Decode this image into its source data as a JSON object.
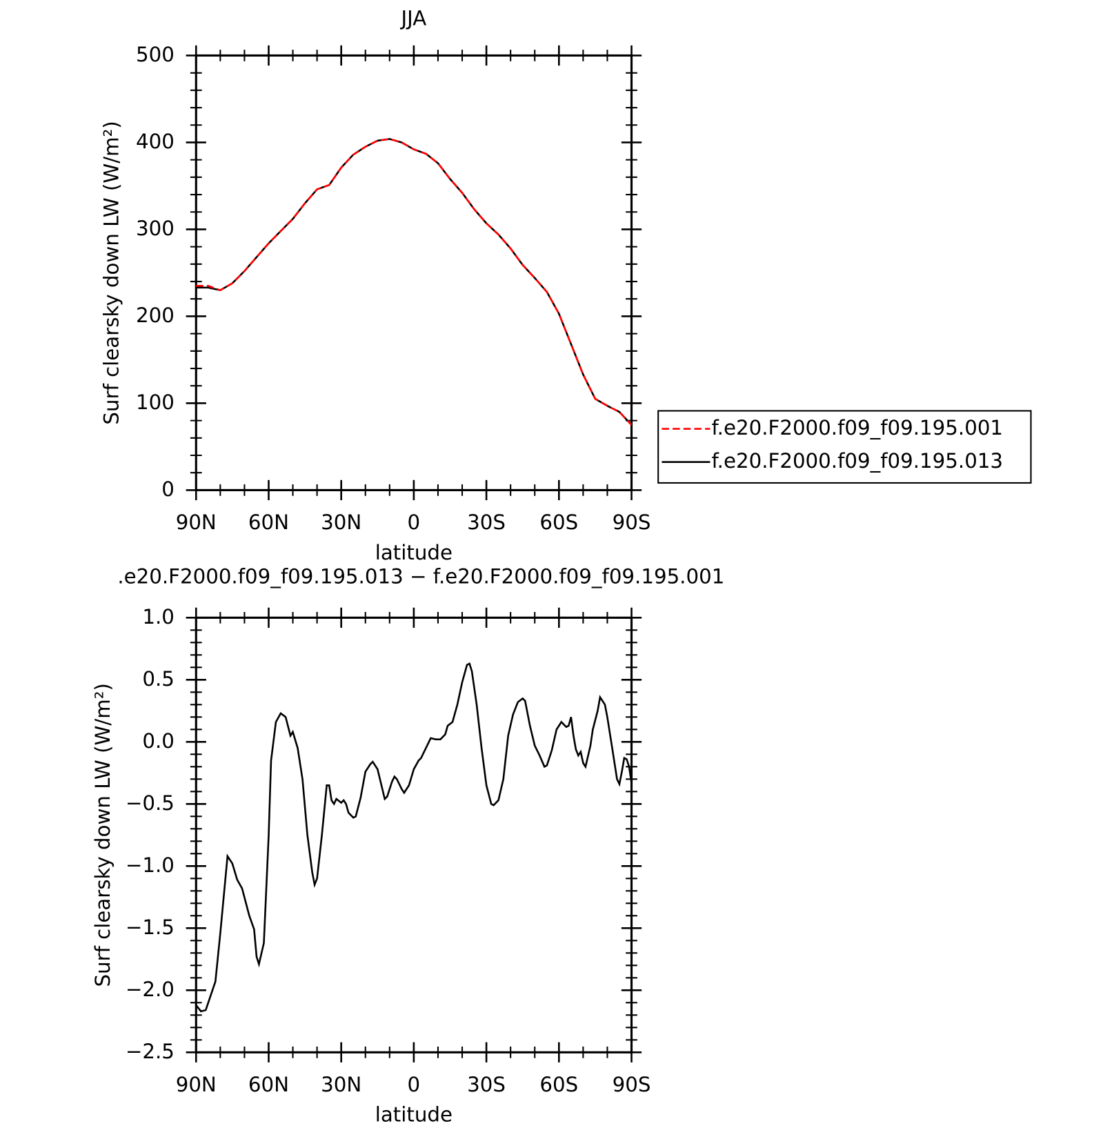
{
  "chart_data": [
    {
      "type": "line",
      "title": "JJA",
      "xlabel": "latitude",
      "ylabel": "Surf clearsky down LW (W/m²)",
      "x": [
        90,
        85,
        80,
        75,
        70,
        65,
        60,
        55,
        50,
        45,
        40,
        35,
        30,
        25,
        20,
        15,
        10,
        5,
        0,
        -5,
        -10,
        -15,
        -20,
        -25,
        -30,
        -35,
        -40,
        -45,
        -50,
        -55,
        -60,
        -65,
        -70,
        -75,
        -80,
        -85,
        -90
      ],
      "series": [
        {
          "name": "f.e20.F2000.f09_f09.195.001",
          "color": "#ff0000",
          "linestyle": "dashed",
          "values": [
            235,
            235,
            230,
            238,
            252,
            268,
            284,
            298,
            312,
            330,
            346,
            351,
            371,
            386,
            395,
            402,
            404,
            400,
            392,
            387,
            376,
            358,
            342,
            323,
            307,
            294,
            278,
            259,
            244,
            228,
            203,
            168,
            133,
            105,
            97,
            90,
            75
          ]
        },
        {
          "name": "f.e20.F2000.f09_f09.195.013",
          "color": "#000000",
          "linestyle": "solid",
          "values": [
            233,
            233,
            230,
            238,
            252,
            268,
            284,
            298,
            312,
            330,
            346,
            351,
            371,
            386,
            395,
            402,
            404,
            400,
            392,
            387,
            376,
            358,
            342,
            323,
            307,
            294,
            278,
            259,
            244,
            228,
            203,
            168,
            133,
            105,
            97,
            90,
            75
          ]
        }
      ],
      "xlim": [
        90,
        -90
      ],
      "xticks": [
        {
          "value": 90,
          "label": "90N"
        },
        {
          "value": 60,
          "label": "60N"
        },
        {
          "value": 30,
          "label": "30N"
        },
        0,
        {
          "value": -30,
          "label": "30S"
        },
        {
          "value": -60,
          "label": "60S"
        },
        {
          "value": -90,
          "label": "90S"
        }
      ],
      "ylim": [
        0,
        500
      ],
      "yticks": [
        0,
        100,
        200,
        300,
        400,
        500
      ],
      "legend": "right"
    },
    {
      "type": "line",
      "title": ".e20.F2000.f09_f09.195.013 − f.e20.F2000.f09_f09.195.001",
      "xlabel": "latitude",
      "ylabel": "Surf clearsky down LW (W/m²)",
      "x": [
        90,
        88,
        86,
        82,
        80,
        77,
        75,
        73,
        71,
        68,
        66,
        65,
        64,
        62,
        60,
        59,
        57,
        55,
        53,
        51,
        50,
        48,
        46,
        44,
        42,
        41,
        40,
        38,
        36,
        35,
        34,
        33,
        32,
        30,
        29,
        28,
        27,
        25,
        24,
        22,
        20,
        18,
        17,
        15,
        13,
        12,
        11,
        9,
        8,
        7,
        5,
        4,
        2,
        0,
        -2,
        -3,
        -5,
        -7,
        -9,
        -11,
        -13,
        -14,
        -16,
        -18,
        -20,
        -22,
        -23,
        -24,
        -26,
        -28,
        -30,
        -32,
        -33,
        -35,
        -37,
        -39,
        -41,
        -43,
        -45,
        -46,
        -48,
        -50,
        -52,
        -54,
        -55,
        -57,
        -59,
        -61,
        -63,
        -64,
        -65,
        -66,
        -67,
        -68,
        -69,
        -70,
        -71,
        -73,
        -74,
        -76,
        -77,
        -79,
        -80,
        -82,
        -84,
        -85,
        -86,
        -87,
        -88,
        -89,
        -90
      ],
      "color": "#000000",
      "values": [
        -2.12,
        -2.17,
        -2.16,
        -1.93,
        -1.54,
        -0.92,
        -0.98,
        -1.11,
        -1.18,
        -1.4,
        -1.51,
        -1.73,
        -1.79,
        -1.62,
        -0.75,
        -0.15,
        0.16,
        0.23,
        0.2,
        0.05,
        0.08,
        -0.05,
        -0.3,
        -0.75,
        -1.05,
        -1.15,
        -1.1,
        -0.75,
        -0.35,
        -0.35,
        -0.47,
        -0.5,
        -0.46,
        -0.49,
        -0.47,
        -0.5,
        -0.57,
        -0.61,
        -0.6,
        -0.45,
        -0.24,
        -0.18,
        -0.16,
        -0.22,
        -0.38,
        -0.46,
        -0.44,
        -0.32,
        -0.28,
        -0.3,
        -0.38,
        -0.41,
        -0.35,
        -0.22,
        -0.15,
        -0.13,
        -0.05,
        0.03,
        0.02,
        0.02,
        0.06,
        0.13,
        0.16,
        0.3,
        0.48,
        0.62,
        0.63,
        0.57,
        0.3,
        -0.05,
        -0.35,
        -0.5,
        -0.51,
        -0.47,
        -0.3,
        0.05,
        0.22,
        0.32,
        0.35,
        0.33,
        0.13,
        -0.03,
        -0.11,
        -0.2,
        -0.19,
        -0.07,
        0.1,
        0.16,
        0.12,
        0.13,
        0.2,
        0.05,
        -0.06,
        -0.11,
        -0.08,
        -0.17,
        -0.2,
        -0.03,
        0.1,
        0.25,
        0.36,
        0.3,
        0.2,
        -0.05,
        -0.3,
        -0.34,
        -0.24,
        -0.13,
        -0.14,
        -0.2,
        -0.33
      ],
      "xlim": [
        90,
        -90
      ],
      "xticks": [
        {
          "value": 90,
          "label": "90N"
        },
        {
          "value": 60,
          "label": "60N"
        },
        {
          "value": 30,
          "label": "30N"
        },
        0,
        {
          "value": -30,
          "label": "30S"
        },
        {
          "value": -60,
          "label": "60S"
        },
        {
          "value": -90,
          "label": "90S"
        }
      ],
      "ylim": [
        -2.5,
        1
      ],
      "yticks": [
        {
          "value": -2.5,
          "label": "−2.5"
        },
        {
          "value": -2,
          "label": "−2.0"
        },
        {
          "value": -1.5,
          "label": "−1.5"
        },
        {
          "value": -1,
          "label": "−1.0"
        },
        {
          "value": -0.5,
          "label": "−0.5"
        },
        {
          "value": 0,
          "label": "0.0"
        },
        0.5,
        {
          "value": 1,
          "label": "1.0"
        }
      ]
    }
  ]
}
